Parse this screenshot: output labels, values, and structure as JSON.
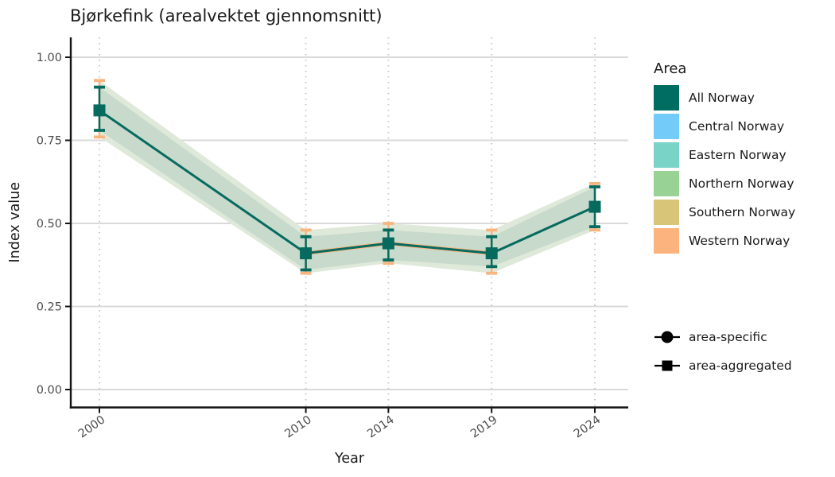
{
  "title": "Bjørkefink (arealvektet gjennomsnitt)",
  "axes": {
    "x_label": "Year",
    "y_label": "Index value"
  },
  "legend": {
    "area_title": "Area",
    "areas": [
      {
        "label": "All Norway",
        "color": "#006d62"
      },
      {
        "label": "Central Norway",
        "color": "#72ccf7"
      },
      {
        "label": "Eastern Norway",
        "color": "#7ad3c7"
      },
      {
        "label": "Northern Norway",
        "color": "#99d295"
      },
      {
        "label": "Southern Norway",
        "color": "#d8c578"
      },
      {
        "label": "Western Norway",
        "color": "#fcb37d"
      }
    ],
    "shapes": [
      {
        "label": "area-specific",
        "symbol": "circle"
      },
      {
        "label": "area-aggregated",
        "symbol": "square"
      }
    ]
  },
  "chart_data": {
    "type": "line",
    "title": "Bjørkefink (arealvektet gjennomsnitt)",
    "xlabel": "Year",
    "ylabel": "Index value",
    "x": [
      2000,
      2010,
      2014,
      2019,
      2024
    ],
    "x_tick_labels": [
      "2000",
      "2010",
      "2014",
      "2019",
      "2024"
    ],
    "y_ticks": [
      0,
      0.25,
      0.5,
      0.75,
      1.0
    ],
    "y_tick_labels": [
      "0.00",
      "0.25",
      "0.50",
      "0.75",
      "1.00"
    ],
    "ylim": [
      0,
      1
    ],
    "grid": true,
    "legend_position": "right",
    "series": [
      {
        "name": "All Norway",
        "aggregation": "area-aggregated",
        "marker": "square",
        "color": "#066a5f",
        "values": [
          0.84,
          0.41,
          0.44,
          0.41,
          0.55
        ],
        "ci_lower": [
          0.78,
          0.36,
          0.39,
          0.37,
          0.49
        ],
        "ci_upper": [
          0.91,
          0.46,
          0.48,
          0.46,
          0.61
        ],
        "outer_ci_lower": [
          0.76,
          0.35,
          0.38,
          0.35,
          0.48
        ],
        "outer_ci_upper": [
          0.93,
          0.48,
          0.5,
          0.48,
          0.62
        ]
      }
    ],
    "styles": {
      "ribbon_inner": "#c8dacc",
      "ribbon_outer": "#dfe9da",
      "errorbar_cap_outer": "#f9b57e",
      "overlay_line": "#fcb37d",
      "grid_major": "#d9d9d9",
      "grid_dotted": "#c9c9c9",
      "axis_color": "#141414",
      "tick_label_color": "#4d4d4d",
      "text_color": "#1a1a1a"
    }
  }
}
